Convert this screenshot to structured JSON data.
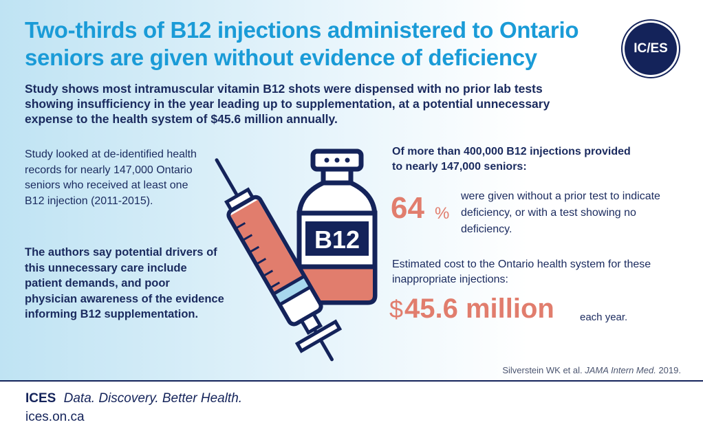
{
  "header": {
    "title": "Two-thirds of B12 injections administered to Ontario seniors are given without evidence of deficiency",
    "logo_text": "IC/ES",
    "subtitle": "Study shows most intramuscular vitamin B12 shots were dispensed with no prior lab tests showing insufficiency in the year leading up to supplementation, at a potential unnecessary expense to the health system of $45.6 million annually."
  },
  "left": {
    "study_text": "Study looked at de-identified health records for nearly 147,000 Ontario seniors who received at least one B12 injection (2011-2015).",
    "drivers_text": "The authors say potential drivers of this unnecessary care include patient demands, and poor physician awareness of the evidence informing B12 supplementation."
  },
  "graphic": {
    "vial_label": "B12",
    "icons": [
      "syringe-icon",
      "vial-icon"
    ],
    "colors": {
      "liquid": "#e17d6d",
      "outline": "#14235a",
      "vial_fill": "#ffffff",
      "syringe_barrel": "#ffffff"
    }
  },
  "right": {
    "heading": "Of more than 400,000 B12 injections provided to nearly 147,000 seniors:",
    "stat_value": "64",
    "stat_unit": "%",
    "stat_text": "were given without a prior test to indicate deficiency, or with a test showing no deficiency.",
    "cost_label": "Estimated cost to the Ontario health system for these inappropriate injections:",
    "cost_currency": "$",
    "cost_amount": "45.6 million",
    "cost_suffix": "each year."
  },
  "citation": {
    "authors": "Silverstein WK et al.",
    "journal": "JAMA Intern Med.",
    "year": "2019."
  },
  "footer": {
    "brand": "ICES",
    "tagline": "Data. Discovery. Better Health.",
    "url": "ices.on.ca"
  },
  "colors": {
    "title_blue": "#1a9bd7",
    "navy": "#14235a",
    "accent_salmon": "#e17d6d",
    "bg_light_blue": "#bfe3f3"
  }
}
